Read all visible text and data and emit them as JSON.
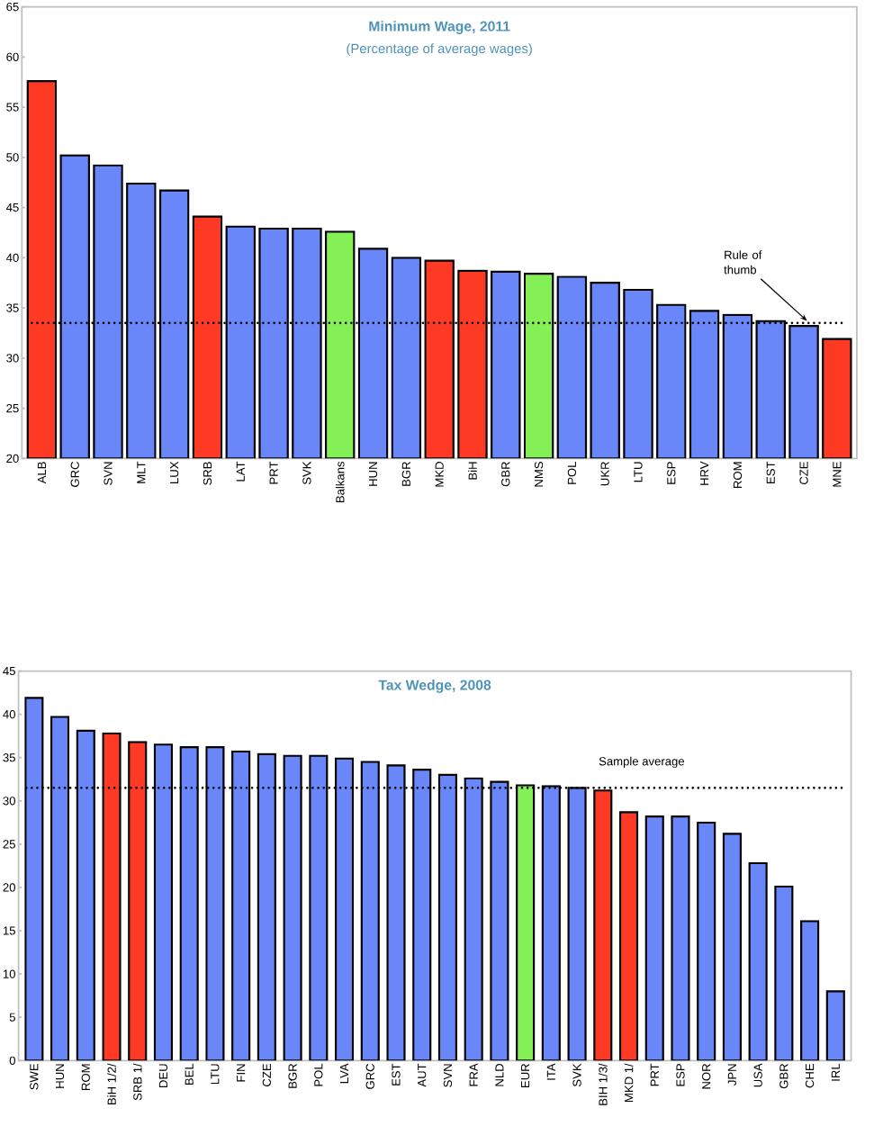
{
  "chart_data": [
    {
      "type": "bar",
      "title": "Minimum Wage, 2011",
      "subtitle": "(Percentage of average wages)",
      "categories": [
        "ALB",
        "GRC",
        "SVN",
        "MLT",
        "LUX",
        "SRB",
        "LAT",
        "PRT",
        "SVK",
        "Balkans",
        "HUN",
        "BGR",
        "MKD",
        "BiH",
        "GBR",
        "NMS",
        "POL",
        "UKR",
        "LTU",
        "ESP",
        "HRV",
        "ROM",
        "EST",
        "CZE",
        "MNE"
      ],
      "values": [
        57.6,
        50.2,
        49.2,
        47.4,
        46.7,
        44.1,
        43.1,
        42.9,
        42.9,
        42.6,
        40.9,
        40.0,
        39.7,
        38.7,
        38.6,
        38.4,
        38.1,
        37.5,
        36.8,
        35.3,
        34.7,
        34.3,
        33.7,
        33.2,
        31.9
      ],
      "colors": [
        "#ff3a24",
        "#6a87f9",
        "#6a87f9",
        "#6a87f9",
        "#6a87f9",
        "#ff3a24",
        "#6a87f9",
        "#6a87f9",
        "#6a87f9",
        "#85f055",
        "#6a87f9",
        "#6a87f9",
        "#ff3a24",
        "#ff3a24",
        "#6a87f9",
        "#85f055",
        "#6a87f9",
        "#6a87f9",
        "#6a87f9",
        "#6a87f9",
        "#6a87f9",
        "#6a87f9",
        "#6a87f9",
        "#6a87f9",
        "#ff3a24"
      ],
      "ylim": [
        20,
        65
      ],
      "yticks": [
        20,
        25,
        30,
        35,
        40,
        45,
        50,
        55,
        60,
        65
      ],
      "grid": false,
      "ref_lines": [
        {
          "axis": "y",
          "value": 33.5,
          "label": "Rule of thumb",
          "color": "#000000",
          "line_style": "dotted"
        }
      ]
    },
    {
      "type": "bar",
      "title": "Tax Wedge,  2008",
      "categories": [
        "SWE",
        "HUN",
        "ROM",
        "BiH 1/2/",
        "SRB 1/",
        "DEU",
        "BEL",
        "LTU",
        "FIN",
        "CZE",
        "BGR",
        "POL",
        "LVA",
        "GRC",
        "EST",
        "AUT",
        "SVN",
        "FRA",
        "NLD",
        "EUR",
        "ITA",
        "SVK",
        "BIH 1/3/",
        "MKD 1/",
        "PRT",
        "ESP",
        "NOR",
        "JPN",
        "USA",
        "GBR",
        "CHE",
        "IRL"
      ],
      "values": [
        41.9,
        39.7,
        38.1,
        37.8,
        36.8,
        36.5,
        36.2,
        36.2,
        35.7,
        35.4,
        35.2,
        35.2,
        34.9,
        34.5,
        34.1,
        33.6,
        33.0,
        32.6,
        32.2,
        31.8,
        31.7,
        31.5,
        31.2,
        28.7,
        28.2,
        28.2,
        27.5,
        26.2,
        22.8,
        20.1,
        16.1,
        8.0
      ],
      "colors": [
        "#6a87f9",
        "#6a87f9",
        "#6a87f9",
        "#ff3a24",
        "#ff3a24",
        "#6a87f9",
        "#6a87f9",
        "#6a87f9",
        "#6a87f9",
        "#6a87f9",
        "#6a87f9",
        "#6a87f9",
        "#6a87f9",
        "#6a87f9",
        "#6a87f9",
        "#6a87f9",
        "#6a87f9",
        "#6a87f9",
        "#6a87f9",
        "#85f055",
        "#6a87f9",
        "#6a87f9",
        "#ff3a24",
        "#ff3a24",
        "#6a87f9",
        "#6a87f9",
        "#6a87f9",
        "#6a87f9",
        "#6a87f9",
        "#6a87f9",
        "#6a87f9",
        "#6a87f9"
      ],
      "ylim": [
        0,
        45
      ],
      "yticks": [
        0,
        5,
        10,
        15,
        20,
        25,
        30,
        35,
        40,
        45
      ],
      "grid": false,
      "ref_lines": [
        {
          "axis": "y",
          "value": 31.5,
          "label": "Sample average",
          "color": "#000000",
          "line_style": "dotted"
        }
      ]
    }
  ]
}
